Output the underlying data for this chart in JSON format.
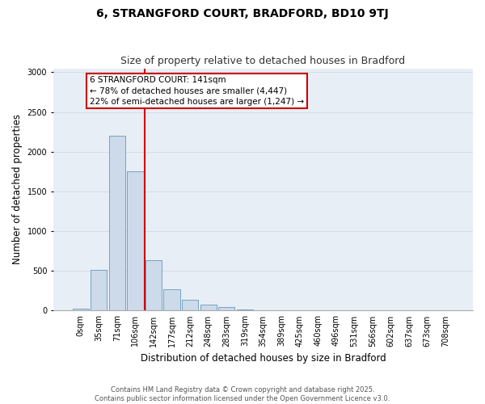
{
  "title": "6, STRANGFORD COURT, BRADFORD, BD10 9TJ",
  "subtitle": "Size of property relative to detached houses in Bradford",
  "xlabel": "Distribution of detached houses by size in Bradford",
  "ylabel": "Number of detached properties",
  "bar_labels": [
    "0sqm",
    "35sqm",
    "71sqm",
    "106sqm",
    "142sqm",
    "177sqm",
    "212sqm",
    "248sqm",
    "283sqm",
    "319sqm",
    "354sqm",
    "389sqm",
    "425sqm",
    "460sqm",
    "496sqm",
    "531sqm",
    "566sqm",
    "602sqm",
    "637sqm",
    "673sqm",
    "708sqm"
  ],
  "bar_values": [
    20,
    510,
    2200,
    1750,
    640,
    265,
    135,
    75,
    40,
    12,
    8,
    5,
    3,
    3,
    3,
    3,
    3,
    3,
    3,
    3,
    3
  ],
  "bar_color": "#ccdaea",
  "bar_edge_color": "#6699bb",
  "property_line_color": "#cc0000",
  "property_line_index": 3.5,
  "annotation_text": "6 STRANGFORD COURT: 141sqm\n← 78% of detached houses are smaller (4,447)\n22% of semi-detached houses are larger (1,247) →",
  "annotation_box_edge_color": "#cc0000",
  "annotation_box_face_color": "#ffffff",
  "ylim": [
    0,
    3050
  ],
  "yticks": [
    0,
    500,
    1000,
    1500,
    2000,
    2500,
    3000
  ],
  "grid_color": "#d4dce8",
  "bg_color": "#e8eef5",
  "footer": "Contains HM Land Registry data © Crown copyright and database right 2025.\nContains public sector information licensed under the Open Government Licence v3.0.",
  "title_fontsize": 10,
  "subtitle_fontsize": 9,
  "axis_label_fontsize": 8.5,
  "tick_fontsize": 7,
  "annotation_fontsize": 7.5
}
